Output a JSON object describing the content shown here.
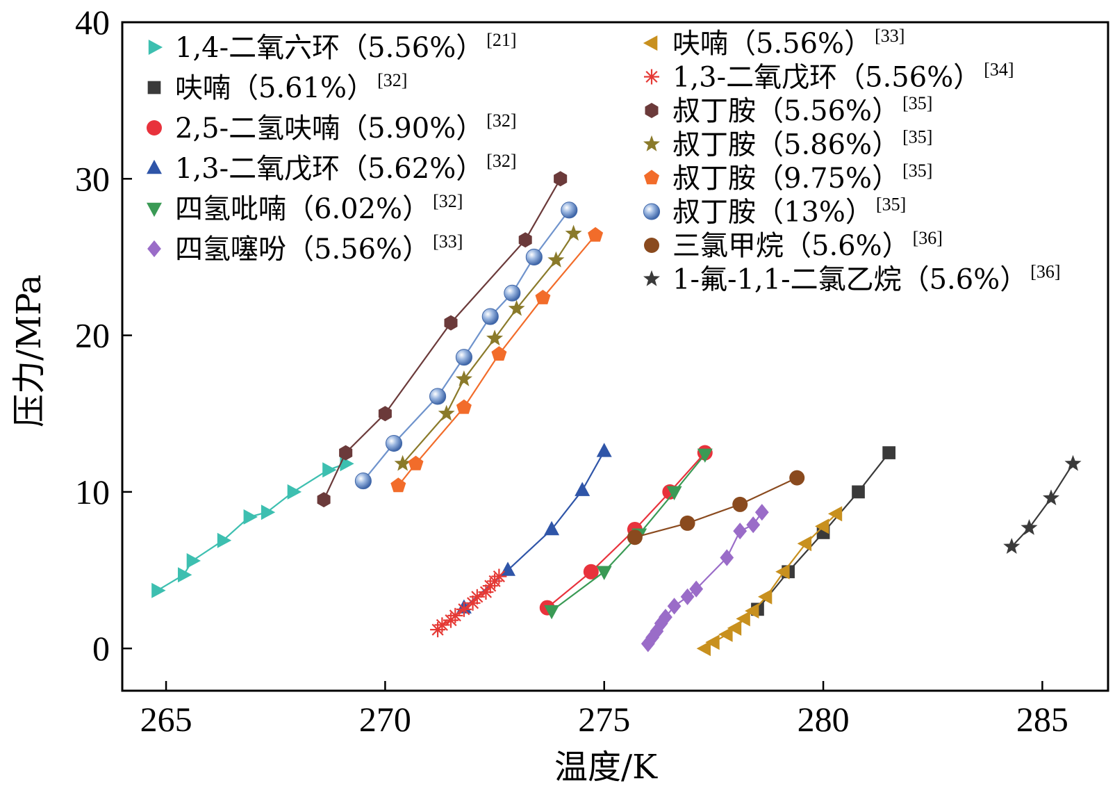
{
  "chart_data": {
    "type": "scatter",
    "title": "",
    "xlabel": "温度/K",
    "ylabel": "压力/MPa",
    "xlim": [
      264,
      286.5
    ],
    "ylim": [
      -2.7,
      40
    ],
    "xticks": [
      265,
      270,
      275,
      280,
      285
    ],
    "yticks": [
      0,
      10,
      20,
      30,
      40
    ],
    "xtick_labels": [
      "265",
      "270",
      "275",
      "280",
      "285"
    ],
    "ytick_labels": [
      "0",
      "10",
      "20",
      "30",
      "40"
    ],
    "grid": false,
    "legend_position": "top",
    "series": [
      {
        "name": "1,4-二氧六环（5.56%）",
        "ref": "[21]",
        "marker": "triangle-right",
        "color": "#3dbfb0",
        "points": [
          [
            264.8,
            3.7
          ],
          [
            265.4,
            4.7
          ],
          [
            265.6,
            5.6
          ],
          [
            266.3,
            6.9
          ],
          [
            266.9,
            8.4
          ],
          [
            267.3,
            8.7
          ],
          [
            267.9,
            10.0
          ],
          [
            268.7,
            11.4
          ],
          [
            269.1,
            11.8
          ]
        ]
      },
      {
        "name": "呋喃（5.61%）",
        "ref": "[32]",
        "marker": "square",
        "color": "#3a3a3a",
        "points": [
          [
            278.5,
            2.5
          ],
          [
            279.2,
            4.9
          ],
          [
            280.0,
            7.4
          ],
          [
            280.8,
            10.0
          ],
          [
            281.5,
            12.5
          ]
        ]
      },
      {
        "name": "2,5-二氢呋喃（5.90%）",
        "ref": "[32]",
        "marker": "circle",
        "color": "#e8323c",
        "points": [
          [
            273.7,
            2.6
          ],
          [
            274.7,
            4.9
          ],
          [
            275.7,
            7.6
          ],
          [
            276.5,
            10.0
          ],
          [
            277.3,
            12.5
          ]
        ]
      },
      {
        "name": "1,3-二氧戊环（5.62%）",
        "ref": "[32]",
        "marker": "triangle-up",
        "color": "#2f55a8",
        "points": [
          [
            271.8,
            2.6
          ],
          [
            272.8,
            5.0
          ],
          [
            273.8,
            7.6
          ],
          [
            274.5,
            10.1
          ],
          [
            275.0,
            12.6
          ]
        ]
      },
      {
        "name": "四氢吡喃（6.02%）",
        "ref": "[32]",
        "marker": "triangle-down",
        "color": "#3a9a55",
        "points": [
          [
            273.8,
            2.4
          ],
          [
            275.0,
            4.9
          ],
          [
            275.8,
            7.3
          ],
          [
            276.6,
            10.0
          ],
          [
            277.3,
            12.4
          ]
        ]
      },
      {
        "name": "四氢噻吩（5.56%）",
        "ref": "[33]",
        "marker": "diamond",
        "color": "#9a6cc8",
        "points": [
          [
            276.0,
            0.3
          ],
          [
            276.1,
            0.7
          ],
          [
            276.2,
            1.1
          ],
          [
            276.3,
            1.6
          ],
          [
            276.4,
            2.0
          ],
          [
            276.6,
            2.7
          ],
          [
            276.9,
            3.3
          ],
          [
            277.1,
            3.8
          ],
          [
            277.8,
            5.8
          ],
          [
            278.1,
            7.5
          ],
          [
            278.4,
            7.9
          ],
          [
            278.6,
            8.7
          ]
        ]
      },
      {
        "name": "呋喃（5.56%）",
        "ref": "[33]",
        "marker": "triangle-left",
        "color": "#c8901e",
        "points": [
          [
            277.3,
            0.0
          ],
          [
            277.5,
            0.4
          ],
          [
            277.8,
            0.9
          ],
          [
            278.0,
            1.3
          ],
          [
            278.2,
            1.9
          ],
          [
            278.4,
            2.4
          ],
          [
            278.7,
            3.3
          ],
          [
            279.1,
            4.9
          ],
          [
            279.6,
            6.7
          ],
          [
            280.0,
            7.8
          ],
          [
            280.3,
            8.6
          ]
        ]
      },
      {
        "name": "1,3-二氧戊环（5.56%）",
        "ref": "[34]",
        "marker": "asterisk",
        "color": "#e53935",
        "points": [
          [
            271.2,
            1.2
          ],
          [
            271.3,
            1.5
          ],
          [
            271.5,
            1.8
          ],
          [
            271.6,
            2.1
          ],
          [
            271.8,
            2.5
          ],
          [
            272.0,
            2.9
          ],
          [
            272.1,
            3.3
          ],
          [
            272.3,
            3.6
          ],
          [
            272.4,
            4.0
          ],
          [
            272.5,
            4.3
          ],
          [
            272.6,
            4.6
          ]
        ]
      },
      {
        "name": "叔丁胺（5.56%）",
        "ref": "[35]",
        "marker": "hexagon",
        "color": "#6b3a3a",
        "points": [
          [
            268.6,
            9.5
          ],
          [
            269.1,
            12.5
          ],
          [
            270.0,
            15.0
          ],
          [
            271.5,
            20.8
          ],
          [
            273.2,
            26.1
          ],
          [
            274.0,
            30.0
          ]
        ]
      },
      {
        "name": "叔丁胺（5.86%）",
        "ref": "[35]",
        "marker": "star",
        "color": "#8a7a2a",
        "points": [
          [
            270.4,
            11.8
          ],
          [
            271.4,
            15.0
          ],
          [
            271.8,
            17.2
          ],
          [
            272.5,
            19.8
          ],
          [
            273.0,
            21.7
          ],
          [
            273.9,
            24.8
          ],
          [
            274.3,
            26.5
          ]
        ]
      },
      {
        "name": "叔丁胺（9.75%）",
        "ref": "[35]",
        "marker": "pentagon",
        "color": "#f26c2a",
        "points": [
          [
            270.3,
            10.4
          ],
          [
            270.7,
            11.8
          ],
          [
            271.8,
            15.4
          ],
          [
            272.6,
            18.8
          ],
          [
            273.6,
            22.4
          ],
          [
            274.8,
            26.4
          ]
        ]
      },
      {
        "name": "叔丁胺（13%）",
        "ref": "[35]",
        "marker": "sphere",
        "color": "#6f93cc",
        "points": [
          [
            269.5,
            10.7
          ],
          [
            270.2,
            13.1
          ],
          [
            271.2,
            16.1
          ],
          [
            271.8,
            18.6
          ],
          [
            272.4,
            21.2
          ],
          [
            272.9,
            22.7
          ],
          [
            273.4,
            25.0
          ],
          [
            274.2,
            28.0
          ]
        ]
      },
      {
        "name": "三氯甲烷（5.6%）",
        "ref": "[36]",
        "marker": "circle",
        "color": "#8a4a1e",
        "points": [
          [
            275.7,
            7.1
          ],
          [
            276.9,
            8.0
          ],
          [
            278.1,
            9.2
          ],
          [
            279.4,
            10.9
          ]
        ]
      },
      {
        "name": "1-氟-1,1-二氯乙烷（5.6%）",
        "ref": "[36]",
        "marker": "star",
        "color": "#3a3a3a",
        "points": [
          [
            284.3,
            6.5
          ],
          [
            284.7,
            7.7
          ],
          [
            285.2,
            9.6
          ],
          [
            285.7,
            11.8
          ]
        ]
      }
    ]
  }
}
